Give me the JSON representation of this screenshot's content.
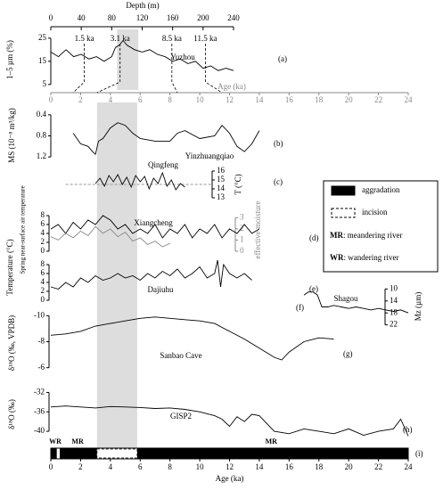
{
  "chart_data": [
    {
      "type": "line",
      "panel": "(a)",
      "site": "Yuzhou",
      "ylabel": "1–5 µm (%)",
      "xlabel": "Depth (m)",
      "xlim": [
        0,
        240
      ],
      "xticks": [
        0,
        40,
        80,
        120,
        160,
        200,
        240
      ],
      "ylim": [
        3,
        28
      ],
      "yticks": [
        5,
        15,
        25
      ],
      "color": "#000000",
      "highlight": [
        87,
        115
      ],
      "x": [
        0,
        10,
        20,
        30,
        40,
        50,
        60,
        70,
        80,
        85,
        90,
        95,
        100,
        110,
        120,
        130,
        140,
        150,
        160,
        170,
        180,
        190,
        200,
        210,
        220,
        230,
        240
      ],
      "values": [
        19,
        17,
        20,
        17,
        18,
        16,
        17,
        15,
        17,
        21,
        22,
        24,
        22,
        20,
        19,
        20,
        18,
        17,
        15,
        16,
        14,
        15,
        12,
        13,
        11,
        12,
        11
      ],
      "markers": [
        {
          "depth": 44,
          "age": 1.5,
          "label": "1.5 ka"
        },
        {
          "depth": 91,
          "age": 3.1,
          "label": "3.1 ka"
        },
        {
          "depth": 159,
          "age": 8.5,
          "label": "8.5 ka"
        },
        {
          "depth": 203,
          "age": 11.5,
          "label": "11.5 ka"
        }
      ],
      "x2label": "Age (ka)",
      "x2lim": [
        0,
        24
      ],
      "x2ticks": [
        0,
        2,
        4,
        6,
        8,
        10,
        12,
        14,
        16,
        18,
        20,
        22,
        24
      ]
    },
    {
      "type": "line",
      "panel": "(b)",
      "site": "Yinzhuangqiao",
      "ylabel": "MS (10⁻⁸ m³/kg)",
      "ylim": [
        1.35,
        0.25
      ],
      "yticks": [
        0.4,
        0.8,
        1.2
      ],
      "color": "#000000",
      "x": [
        1.5,
        2,
        2.5,
        2.8,
        3,
        3.2,
        3.5,
        4,
        4.5,
        5,
        5.5,
        6,
        7,
        8,
        8.5,
        9,
        10,
        11,
        11.5,
        12,
        12.5,
        13,
        13.5,
        14
      ],
      "values": [
        0.75,
        0.95,
        1.0,
        1.1,
        1.15,
        0.9,
        0.85,
        0.65,
        0.55,
        0.6,
        0.75,
        0.85,
        0.9,
        0.9,
        0.75,
        0.7,
        0.85,
        0.8,
        0.6,
        0.75,
        1.0,
        1.1,
        0.95,
        0.7
      ]
    },
    {
      "type": "line",
      "panel": "(c)",
      "site": "Qingfeng",
      "ylabel": "T (°C)",
      "ylim": [
        12.4,
        16.7
      ],
      "yticks": [
        13,
        14,
        15,
        16
      ],
      "color": "#000000",
      "reference": 14.5,
      "x": [
        3,
        3.3,
        3.6,
        3.9,
        4.2,
        4.5,
        4.8,
        5.1,
        5.4,
        5.7,
        6,
        6.3,
        6.6,
        6.9,
        7.2,
        7.5,
        7.8,
        8.1,
        8.4,
        8.7,
        9
      ],
      "values": [
        14.6,
        15.2,
        14.3,
        15.5,
        14.8,
        15.6,
        14.5,
        15.3,
        14.2,
        15.5,
        14.8,
        15.4,
        14.0,
        15.2,
        14.6,
        15.8,
        14.3,
        15.0,
        13.9,
        14.6,
        14.2
      ]
    },
    {
      "type": "line",
      "panel": "(d)",
      "site": "Xiangcheng",
      "ylabel": "Spring near-surface air temperature",
      "y2label": "effective moisture",
      "ylim": [
        0,
        8.8
      ],
      "yticks": [
        0,
        2,
        4,
        6,
        8
      ],
      "y2lim": [
        0,
        3.5
      ],
      "y2ticks": [
        0,
        1,
        2,
        3
      ],
      "series": [
        {
          "color": "#000000",
          "x": [
            0,
            0.5,
            1,
            1.5,
            2,
            2.5,
            3,
            3.5,
            4,
            4.5,
            5,
            5.5,
            6,
            6.5,
            7,
            7.5,
            8,
            8.5,
            9,
            9.5,
            10,
            10.5,
            11,
            11.5,
            12,
            12.5,
            13,
            13.5,
            14
          ],
          "values": [
            5,
            6,
            4,
            6.5,
            5,
            7,
            6,
            8,
            7,
            5,
            6,
            4,
            5,
            4,
            6,
            3,
            5,
            4,
            6,
            3,
            5,
            4,
            6,
            3,
            5,
            4,
            6,
            4,
            5
          ]
        },
        {
          "color": "#888888",
          "axis": "y2",
          "x": [
            0,
            0.5,
            1,
            1.5,
            2,
            2.5,
            3,
            3.5,
            4,
            4.5,
            5,
            5.5,
            6,
            6.5,
            7,
            7.5,
            8
          ],
          "values": [
            1.3,
            1.0,
            1.6,
            1.2,
            1.8,
            1.4,
            2.2,
            1.6,
            2.0,
            1.3,
            1.7,
            0.9,
            1.2,
            0.6,
            0.9,
            0.4,
            0.7
          ]
        }
      ]
    },
    {
      "type": "line",
      "panel": "(e)",
      "site": "Dajiuhu",
      "ylabel": "Temperature (°C)",
      "ylim": [
        0,
        9.4
      ],
      "yticks": [
        0,
        2,
        4,
        6,
        8
      ],
      "color": "#000000",
      "x": [
        0,
        0.5,
        1,
        1.5,
        2,
        2.5,
        3,
        3.5,
        4,
        4.5,
        5,
        5.5,
        6,
        6.5,
        7,
        7.5,
        8,
        8.5,
        9,
        9.5,
        10,
        10.5,
        11,
        11.2,
        11.4,
        11.6,
        12,
        12.5,
        13,
        13.5
      ],
      "values": [
        3,
        2.5,
        4,
        3,
        5,
        4,
        5.5,
        4.5,
        5,
        6,
        5,
        5.5,
        4.5,
        6,
        5,
        6.5,
        5.5,
        7,
        5,
        6,
        7.5,
        5,
        6,
        9,
        3,
        8,
        6,
        5,
        6,
        4.5
      ]
    },
    {
      "type": "line",
      "panel": "(f)",
      "site": "Shagou",
      "ylabel": "Mz (µm)",
      "ylim": [
        23,
        8.7
      ],
      "yticks": [
        10,
        14,
        18,
        22
      ],
      "color": "#000000",
      "x": [
        17,
        17.3,
        17.6,
        17.9,
        18.2,
        18.6,
        19,
        19.5,
        20,
        20.5,
        21,
        21.5,
        22,
        22.5,
        23,
        23.5,
        24
      ],
      "values": [
        12,
        11,
        11,
        12,
        16,
        16,
        15.5,
        16,
        16.5,
        16,
        16.5,
        17,
        16.5,
        17,
        17.5,
        17,
        18
      ]
    },
    {
      "type": "line",
      "panel": "(g)",
      "site": "Sanbao Cave",
      "ylabel": "δ¹⁸O (‰, VPDB)",
      "ylim": [
        -5.5,
        -10.3
      ],
      "yticks": [
        -10,
        -8,
        -6
      ],
      "color": "#000000",
      "x": [
        0,
        1,
        2,
        3,
        4,
        5,
        6,
        7,
        8,
        9,
        10,
        11,
        12,
        13,
        14,
        15,
        15.5,
        16,
        17,
        18,
        19
      ],
      "values": [
        -8.5,
        -8.6,
        -8.8,
        -9.2,
        -9.4,
        -9.6,
        -9.8,
        -9.9,
        -9.8,
        -9.7,
        -9.6,
        -9.4,
        -8.8,
        -8.2,
        -7.5,
        -6.8,
        -6.6,
        -7.2,
        -8.0,
        -8.3,
        -8.2
      ]
    },
    {
      "type": "line",
      "panel": "(h)",
      "site": "GISP2",
      "ylabel": "δ¹⁸O (‰)",
      "ylim": [
        -42,
        -31
      ],
      "yticks": [
        -40,
        -36,
        -32
      ],
      "color": "#000000",
      "x": [
        0,
        1,
        2,
        3,
        4,
        5,
        6,
        7,
        8,
        9,
        10,
        11,
        11.5,
        12,
        12.5,
        13,
        13.5,
        14,
        15,
        16,
        17,
        18,
        19,
        20,
        21,
        22,
        23,
        23.5,
        24
      ],
      "values": [
        -35,
        -34.8,
        -35,
        -35.2,
        -34.9,
        -35,
        -35.1,
        -35.3,
        -35.2,
        -35.5,
        -36,
        -36.8,
        -37.5,
        -39,
        -37,
        -38,
        -36.5,
        -36.8,
        -40,
        -40.5,
        -39.5,
        -40,
        -40.5,
        -39.5,
        -40.8,
        -40,
        -39.5,
        -37.5,
        -41
      ]
    },
    {
      "type": "interval",
      "panel": "(i)",
      "xlabel": "Age (ka)",
      "xlim": [
        0,
        24
      ],
      "xticks": [
        0,
        2,
        4,
        6,
        8,
        10,
        12,
        14,
        16,
        18,
        20,
        22,
        24
      ],
      "highlight": [
        3.1,
        5.8
      ],
      "aggradation": [
        [
          0,
          0.4
        ],
        [
          0.6,
          3.1
        ],
        [
          5.8,
          24
        ]
      ],
      "incision": [
        [
          3.1,
          5.8
        ]
      ],
      "labels": [
        {
          "text": "WR",
          "x": 0.3
        },
        {
          "text": "MR",
          "x": 1.8
        },
        {
          "text": "MR",
          "x": 14.8
        }
      ],
      "legend": [
        {
          "label": "aggradation",
          "style": "solid"
        },
        {
          "label": "incision",
          "style": "dashed"
        }
      ],
      "abbreviations": [
        {
          "abbr": "MR",
          "text": ": meandering river"
        },
        {
          "abbr": "WR",
          "text": ": wandering river"
        }
      ]
    }
  ]
}
